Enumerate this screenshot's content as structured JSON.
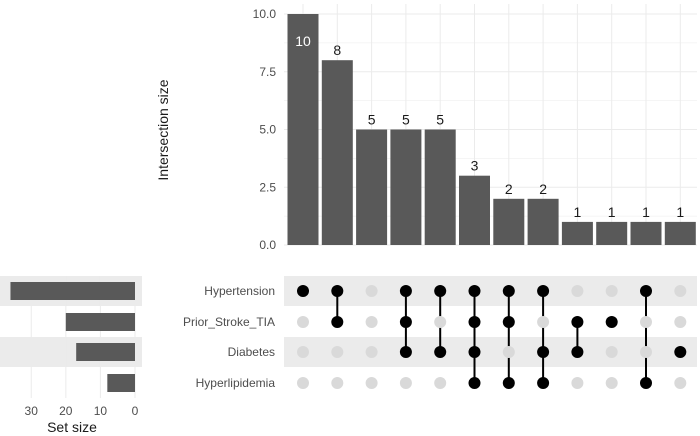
{
  "chart_data": {
    "type": "upset",
    "intersection_axis_label": "Intersection size",
    "set_axis_label": "Set size",
    "intersection_ylim": [
      0,
      10
    ],
    "intersection_yticks": [
      "0.0",
      "2.5",
      "5.0",
      "7.5",
      "10.0"
    ],
    "set_xticks": [
      "30",
      "20",
      "10",
      "0"
    ],
    "set_xlim": [
      0,
      37
    ],
    "sets": [
      {
        "name": "Hypertension",
        "size": 36
      },
      {
        "name": "Prior_Stroke_TIA",
        "size": 20
      },
      {
        "name": "Diabetes",
        "size": 17
      },
      {
        "name": "Hyperlipidemia",
        "size": 8
      }
    ],
    "intersections": [
      {
        "size": 10,
        "label": "10",
        "members": [
          "Hypertension"
        ]
      },
      {
        "size": 8,
        "label": "8",
        "members": [
          "Hypertension",
          "Prior_Stroke_TIA"
        ]
      },
      {
        "size": 5,
        "label": "5",
        "members": []
      },
      {
        "size": 5,
        "label": "5",
        "members": [
          "Hypertension",
          "Prior_Stroke_TIA",
          "Diabetes"
        ]
      },
      {
        "size": 5,
        "label": "5",
        "members": [
          "Hypertension",
          "Diabetes"
        ]
      },
      {
        "size": 3,
        "label": "3",
        "members": [
          "Hypertension",
          "Prior_Stroke_TIA",
          "Diabetes",
          "Hyperlipidemia"
        ]
      },
      {
        "size": 2,
        "label": "2",
        "members": [
          "Hypertension",
          "Prior_Stroke_TIA",
          "Hyperlipidemia"
        ]
      },
      {
        "size": 2,
        "label": "2",
        "members": [
          "Hypertension",
          "Diabetes",
          "Hyperlipidemia"
        ]
      },
      {
        "size": 1,
        "label": "1",
        "members": [
          "Prior_Stroke_TIA",
          "Diabetes"
        ]
      },
      {
        "size": 1,
        "label": "1",
        "members": [
          "Prior_Stroke_TIA"
        ]
      },
      {
        "size": 1,
        "label": "1",
        "members": [
          "Hypertension",
          "Hyperlipidemia"
        ]
      },
      {
        "size": 1,
        "label": "1",
        "members": [
          "Diabetes"
        ]
      }
    ],
    "colors": {
      "bar": "#595959",
      "dot_on": "#000000",
      "dot_off": "#d9d9d9",
      "stripe": "#ebebeb",
      "grid": "#ebebeb"
    },
    "grid": true
  }
}
